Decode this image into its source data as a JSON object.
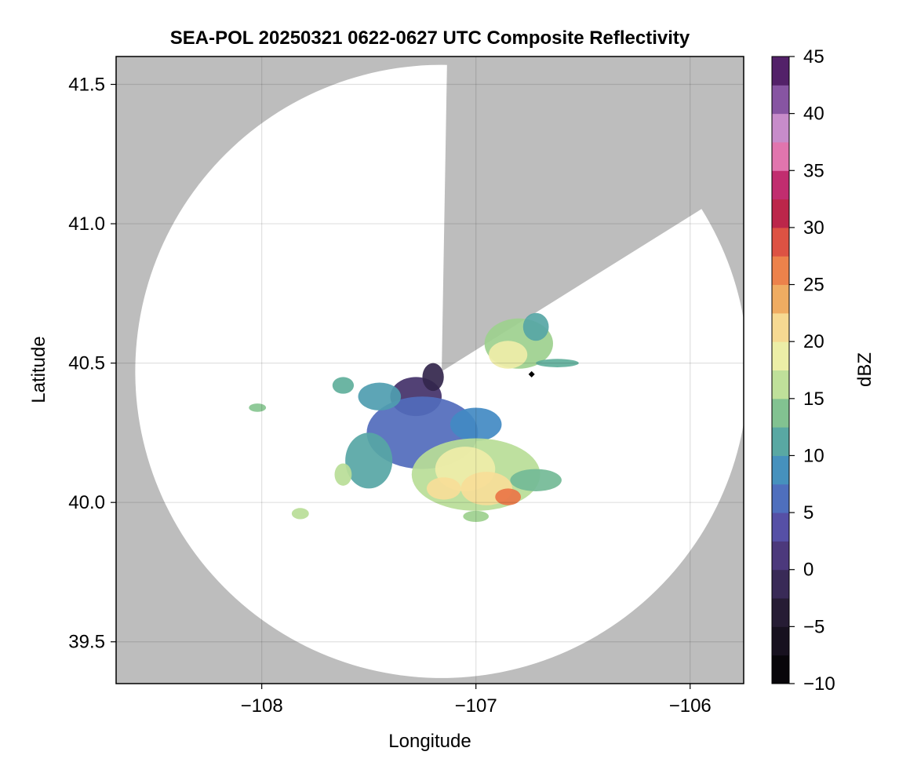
{
  "chart_data": {
    "type": "heatmap",
    "title": "SEA-POL 20250321 0622-0627 UTC Composite Reflectivity",
    "xlabel": "Longitude",
    "ylabel": "Latitude",
    "xlim": [
      -108.68,
      -105.75
    ],
    "ylim": [
      39.35,
      41.6
    ],
    "x_ticks": [
      -108,
      -107,
      -106
    ],
    "x_tick_labels": [
      "−108",
      "−107",
      "−106"
    ],
    "y_ticks": [
      39.5,
      40.0,
      40.5,
      41.0,
      41.5
    ],
    "y_tick_labels": [
      "39.5",
      "40.0",
      "40.5",
      "41.0",
      "41.5"
    ],
    "grid": true,
    "background": "#bdbdbd",
    "radar": {
      "center_lon": -107.16,
      "center_lat": 40.47,
      "range_lat_deg": 1.1,
      "blocked_sector_deg": [
        1,
        58
      ],
      "marker": {
        "lon": -106.74,
        "lat": 40.46
      }
    },
    "colorbar": {
      "label": "dBZ",
      "min": -10,
      "max": 45,
      "step": 2.5,
      "ticks": [
        -10,
        -5,
        0,
        5,
        10,
        15,
        20,
        25,
        30,
        35,
        40,
        45
      ],
      "tick_labels": [
        "−10",
        "−5",
        "0",
        "5",
        "10",
        "15",
        "20",
        "25",
        "30",
        "35",
        "40",
        "45"
      ],
      "colormap": "spectral-reversed"
    },
    "echo_regions": [
      {
        "lon": -106.8,
        "lat": 40.57,
        "rx": 0.16,
        "ry": 0.09,
        "dbz": 15
      },
      {
        "lon": -106.85,
        "lat": 40.53,
        "rx": 0.09,
        "ry": 0.05,
        "dbz": 19
      },
      {
        "lon": -106.72,
        "lat": 40.63,
        "rx": 0.06,
        "ry": 0.05,
        "dbz": 11
      },
      {
        "lon": -106.62,
        "lat": 40.5,
        "rx": 0.1,
        "ry": 0.015,
        "dbz": 12
      },
      {
        "lon": -107.28,
        "lat": 40.38,
        "rx": 0.12,
        "ry": 0.07,
        "dbz": 0
      },
      {
        "lon": -107.2,
        "lat": 40.45,
        "rx": 0.05,
        "ry": 0.05,
        "dbz": -2
      },
      {
        "lon": -107.25,
        "lat": 40.25,
        "rx": 0.26,
        "ry": 0.13,
        "dbz": 6
      },
      {
        "lon": -107.0,
        "lat": 40.28,
        "rx": 0.12,
        "ry": 0.06,
        "dbz": 8
      },
      {
        "lon": -107.5,
        "lat": 40.15,
        "rx": 0.11,
        "ry": 0.1,
        "dbz": 11
      },
      {
        "lon": -107.45,
        "lat": 40.38,
        "rx": 0.1,
        "ry": 0.05,
        "dbz": 10
      },
      {
        "lon": -107.62,
        "lat": 40.42,
        "rx": 0.05,
        "ry": 0.03,
        "dbz": 12
      },
      {
        "lon": -107.62,
        "lat": 40.1,
        "rx": 0.04,
        "ry": 0.04,
        "dbz": 16
      },
      {
        "lon": -107.0,
        "lat": 40.1,
        "rx": 0.3,
        "ry": 0.13,
        "dbz": 16
      },
      {
        "lon": -107.05,
        "lat": 40.12,
        "rx": 0.14,
        "ry": 0.08,
        "dbz": 19
      },
      {
        "lon": -106.95,
        "lat": 40.05,
        "rx": 0.12,
        "ry": 0.06,
        "dbz": 21
      },
      {
        "lon": -107.15,
        "lat": 40.05,
        "rx": 0.08,
        "ry": 0.04,
        "dbz": 21
      },
      {
        "lon": -106.85,
        "lat": 40.02,
        "rx": 0.06,
        "ry": 0.03,
        "dbz": 27
      },
      {
        "lon": -106.72,
        "lat": 40.08,
        "rx": 0.12,
        "ry": 0.04,
        "dbz": 13
      },
      {
        "lon": -108.02,
        "lat": 40.34,
        "rx": 0.04,
        "ry": 0.015,
        "dbz": 14
      },
      {
        "lon": -107.82,
        "lat": 39.96,
        "rx": 0.04,
        "ry": 0.02,
        "dbz": 16
      },
      {
        "lon": -107.0,
        "lat": 39.95,
        "rx": 0.06,
        "ry": 0.02,
        "dbz": 15
      }
    ]
  }
}
